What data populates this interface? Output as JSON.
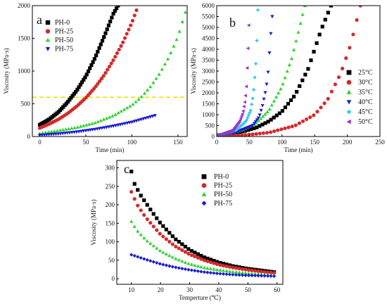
{
  "chart_data": [
    {
      "panel": "a",
      "type": "scatter",
      "xlabel": "Time (min)",
      "ylabel": "Viscosity (MPa·s)",
      "xlim": [
        -8,
        160
      ],
      "ylim": [
        0,
        2000
      ],
      "xticks": [
        0,
        50,
        100,
        150
      ],
      "yticks": [
        0,
        500,
        1000,
        1500,
        2000
      ],
      "legend_position": "top-left",
      "threshold": {
        "y": 600,
        "color": "#e6e600",
        "style": "dashed"
      },
      "series": [
        {
          "name": "PH-0",
          "marker": "square",
          "color": "#000000",
          "x": [
            0,
            10,
            20,
            30,
            40,
            50,
            60,
            70,
            80,
            85
          ],
          "y": [
            180,
            260,
            370,
            520,
            700,
            920,
            1200,
            1530,
            1880,
            2000
          ]
        },
        {
          "name": "PH-25",
          "marker": "circle",
          "color": "#d42a2a",
          "x": [
            0,
            10,
            20,
            30,
            40,
            50,
            60,
            70,
            80,
            90,
            100,
            105
          ],
          "y": [
            130,
            190,
            260,
            350,
            460,
            590,
            750,
            940,
            1170,
            1430,
            1740,
            1930
          ]
        },
        {
          "name": "PH-50",
          "marker": "triangle-up",
          "color": "#2fd12f",
          "x": [
            0,
            20,
            40,
            60,
            80,
            100,
            110,
            120,
            130,
            140,
            150,
            158
          ],
          "y": [
            50,
            90,
            140,
            210,
            320,
            480,
            600,
            760,
            960,
            1210,
            1530,
            1900
          ]
        },
        {
          "name": "PH-75",
          "marker": "triangle-down",
          "color": "#1a1ad4",
          "x": [
            0,
            20,
            40,
            60,
            80,
            100,
            115,
            125
          ],
          "y": [
            20,
            40,
            70,
            110,
            160,
            220,
            280,
            320
          ]
        }
      ]
    },
    {
      "panel": "b",
      "type": "scatter",
      "xlabel": "Time (min)",
      "ylabel": "Viscosity (MPa·s)",
      "xlim": [
        0,
        250
      ],
      "ylim": [
        0,
        6000
      ],
      "xticks": [
        0,
        50,
        100,
        150,
        200,
        250
      ],
      "yticks": [
        0,
        500,
        1000,
        1500,
        2000,
        2500,
        3000,
        3500,
        4000,
        4500,
        5000,
        5500,
        6000
      ],
      "legend_position": "right",
      "series": [
        {
          "name": "25°C",
          "marker": "square",
          "color": "#000000",
          "x": [
            0,
            20,
            40,
            60,
            80,
            100,
            120,
            140,
            160,
            175
          ],
          "y": [
            50,
            120,
            230,
            400,
            700,
            1150,
            1900,
            3100,
            4900,
            6000
          ]
        },
        {
          "name": "30°C",
          "marker": "circle",
          "color": "#d42a2a",
          "x": [
            0,
            40,
            80,
            120,
            150,
            170,
            190,
            205,
            215,
            220
          ],
          "y": [
            20,
            60,
            180,
            500,
            1000,
            1700,
            2900,
            4200,
            5400,
            6000
          ]
        },
        {
          "name": "35°C",
          "marker": "triangle-up",
          "color": "#2fd12f",
          "x": [
            0,
            20,
            40,
            60,
            80,
            100,
            115,
            125,
            135
          ],
          "y": [
            50,
            150,
            300,
            600,
            1200,
            2300,
            3600,
            4800,
            6000
          ]
        },
        {
          "name": "40°C",
          "marker": "triangle-down",
          "color": "#1a1ad4",
          "x": [
            0,
            30,
            55,
            65,
            70,
            75,
            78,
            80,
            82,
            85
          ],
          "y": [
            30,
            200,
            500,
            900,
            1400,
            2100,
            2700,
            3500,
            4400,
            5500
          ]
        },
        {
          "name": "45°C",
          "marker": "diamond",
          "color": "#33ccee",
          "x": [
            0,
            30,
            45,
            52,
            56,
            58,
            60,
            62,
            63
          ],
          "y": [
            30,
            300,
            700,
            1200,
            1900,
            2600,
            3400,
            4800,
            5800
          ]
        },
        {
          "name": "50°C",
          "marker": "triangle-left",
          "color": "#9933cc",
          "x": [
            0,
            25,
            35,
            40,
            43,
            45,
            46,
            47,
            48,
            49
          ],
          "y": [
            30,
            300,
            700,
            1100,
            1600,
            2100,
            2700,
            3500,
            4200,
            5100
          ]
        }
      ]
    },
    {
      "panel": "c",
      "type": "scatter",
      "xlabel": "Temperture (℃)",
      "ylabel": "Viscosity (MPa·s)",
      "xlim": [
        5,
        62
      ],
      "ylim": [
        -15,
        320
      ],
      "xticks": [
        10,
        20,
        30,
        40,
        50,
        60
      ],
      "yticks": [
        0,
        50,
        100,
        150,
        200,
        250,
        300
      ],
      "legend_position": "top-right",
      "series": [
        {
          "name": "PH-0",
          "marker": "square",
          "color": "#000000",
          "x": [
            10,
            11,
            13,
            15,
            17,
            20,
            25,
            30,
            35,
            40,
            45,
            50,
            55,
            59
          ],
          "y": [
            290,
            258,
            228,
            205,
            182,
            150,
            108,
            78,
            58,
            44,
            34,
            27,
            22,
            18
          ]
        },
        {
          "name": "PH-25",
          "marker": "circle",
          "color": "#d42a2a",
          "x": [
            10,
            12,
            15,
            20,
            25,
            30,
            35,
            40,
            45,
            50,
            55,
            59
          ],
          "y": [
            235,
            200,
            165,
            120,
            88,
            66,
            50,
            38,
            30,
            24,
            19,
            16
          ]
        },
        {
          "name": "PH-50",
          "marker": "triangle-up",
          "color": "#2fd12f",
          "x": [
            10,
            12,
            15,
            20,
            25,
            30,
            35,
            40,
            45,
            50,
            55,
            59
          ],
          "y": [
            155,
            130,
            105,
            75,
            55,
            40,
            30,
            24,
            19,
            15,
            12,
            10
          ]
        },
        {
          "name": "PH-75",
          "marker": "diamond",
          "color": "#1a1ad4",
          "x": [
            10,
            15,
            20,
            25,
            30,
            35,
            40,
            45,
            50,
            55,
            59
          ],
          "y": [
            65,
            52,
            40,
            31,
            24,
            18,
            14,
            11,
            9,
            8,
            7
          ]
        }
      ]
    }
  ]
}
